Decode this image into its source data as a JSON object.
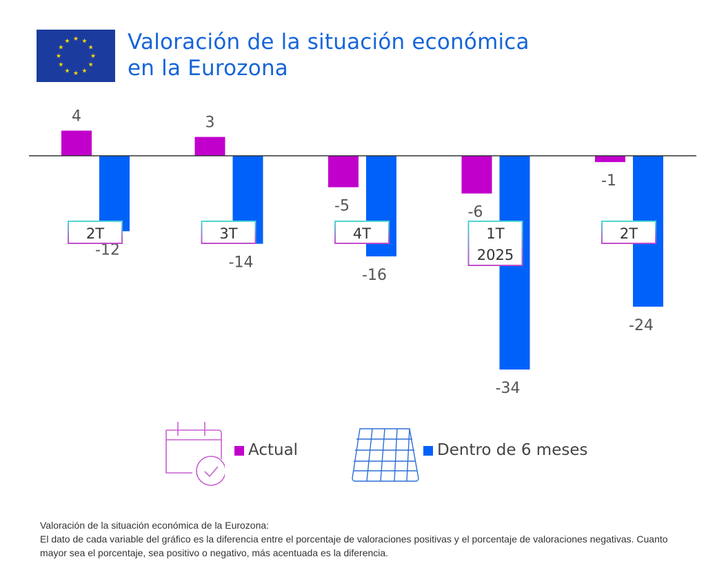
{
  "header": {
    "title_line1": "Valoración de la situación económica",
    "title_line2": "en la Eurozona",
    "flag_icon": "eu-flag-icon"
  },
  "colors": {
    "actual": "#c100cc",
    "future": "#0061fa",
    "title": "#1565d8",
    "flag_bg": "#1b3c9e",
    "flag_stars": "#f7d40b",
    "label_border_top": "#4fd6d0",
    "label_border_bottom": "#c14fc9"
  },
  "chart_data": {
    "type": "bar",
    "title": "Valoración de la situación económica en la Eurozona",
    "xlabel": "",
    "ylabel": "",
    "ylim": [
      -36,
      6
    ],
    "grid": false,
    "legend_position": "bottom",
    "categories": [
      "2T",
      "3T",
      "4T",
      "1T 2025",
      "2T"
    ],
    "category_lines": [
      [
        "2T"
      ],
      [
        "3T"
      ],
      [
        "4T"
      ],
      [
        "1T",
        "2025"
      ],
      [
        "2T"
      ]
    ],
    "series": [
      {
        "name": "Actual",
        "color": "#c100cc",
        "values": [
          4,
          3,
          -5,
          -6,
          -1
        ]
      },
      {
        "name": "Dentro de 6 meses",
        "color": "#0061fa",
        "values": [
          -12,
          -14,
          -16,
          -34,
          -24
        ]
      }
    ],
    "data_labels": {
      "Actual": [
        "4",
        "3",
        "-5",
        "-6",
        "-1"
      ],
      "Dentro de 6 meses": [
        "-12",
        "-14",
        "-16",
        "-34",
        "-24"
      ]
    }
  },
  "legend": {
    "items": [
      {
        "label": "Actual",
        "icon": "calendar-check-icon",
        "color": "#c100cc"
      },
      {
        "label": "Dentro de 6 meses",
        "icon": "calendar-grid-icon",
        "color": "#0061fa"
      }
    ]
  },
  "notes": {
    "heading": "Valoración de la situación económica de la Eurozona:",
    "body": "El dato de cada variable del gráfico es la diferencia entre el porcentaje de valoraciones positivas y el porcentaje de valoraciones negativas. Cuanto mayor sea el porcentaje, sea positivo o negativo, más acentuada es la diferencia."
  }
}
